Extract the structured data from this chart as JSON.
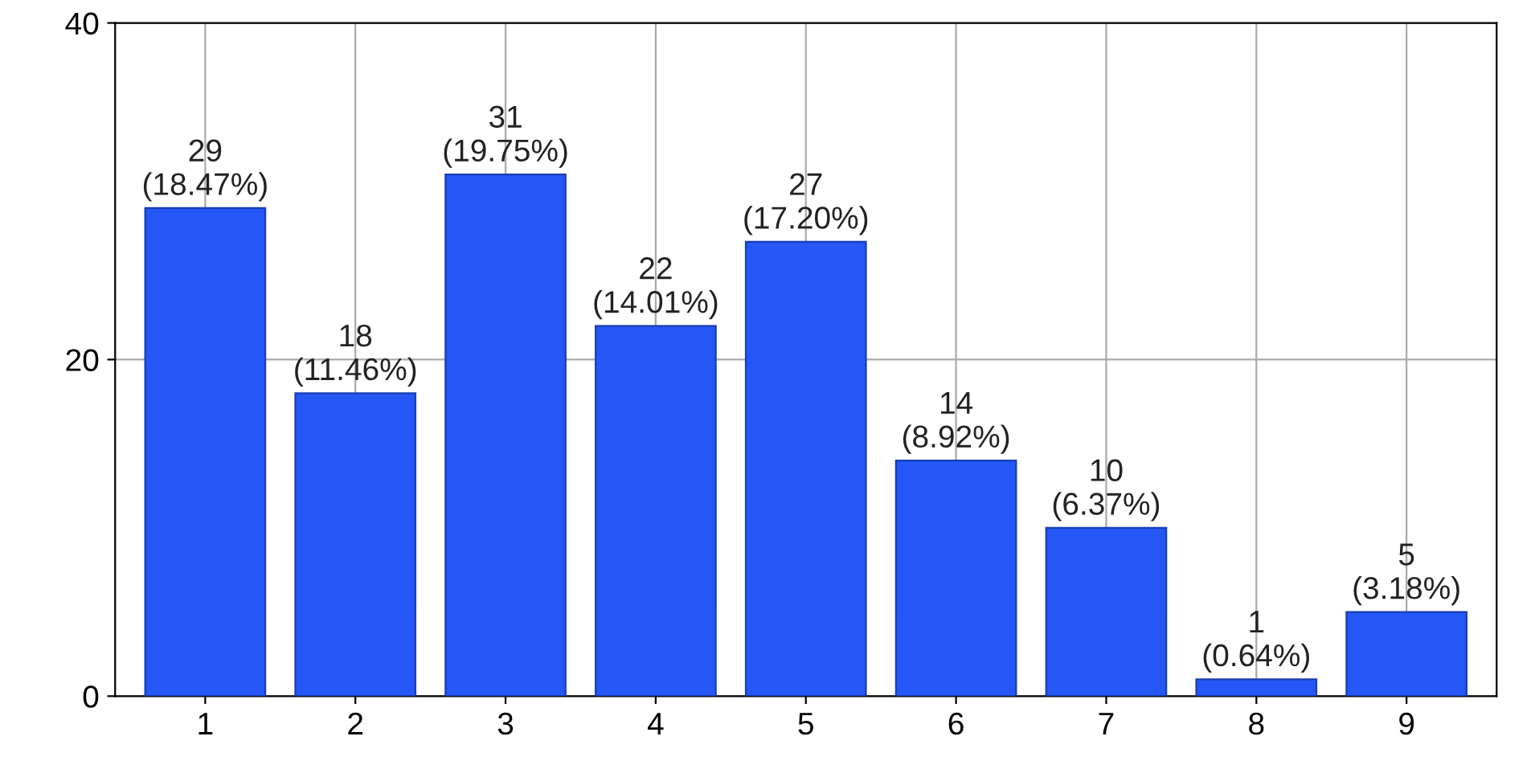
{
  "chart_data": {
    "type": "bar",
    "categories": [
      "1",
      "2",
      "3",
      "4",
      "5",
      "6",
      "7",
      "8",
      "9"
    ],
    "values": [
      29,
      18,
      31,
      22,
      27,
      14,
      10,
      1,
      5
    ],
    "value_labels": [
      "29\n(18.47%)",
      "18\n(11.46%)",
      "31\n(19.75%)",
      "22\n(14.01%)",
      "27\n(17.20%)",
      "14\n(8.92%)",
      "10\n(6.37%)",
      "1\n(0.64%)",
      "5\n(3.18%)"
    ],
    "color": "#2457f5",
    "ylim": [
      0,
      40
    ],
    "yticks": [
      0,
      20,
      40
    ],
    "grid": true
  }
}
